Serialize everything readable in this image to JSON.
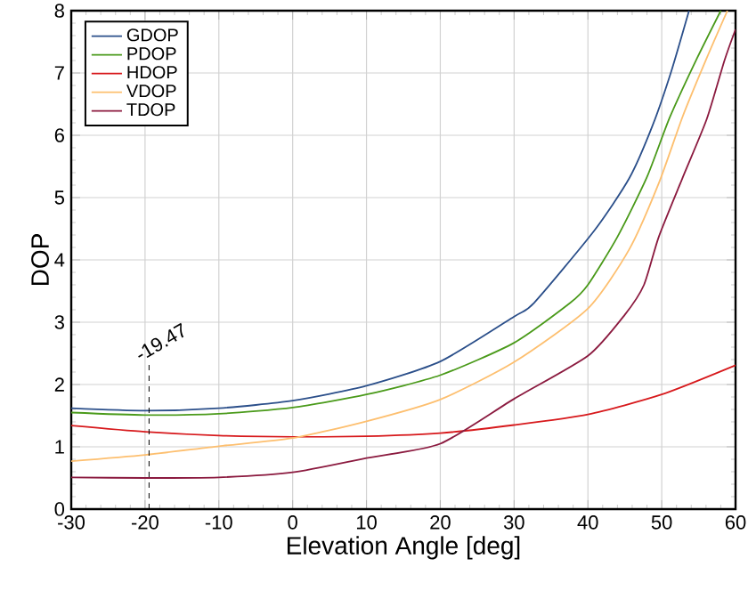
{
  "chart_data": {
    "type": "line",
    "xlabel": "Elevation Angle [deg]",
    "ylabel": "DOP",
    "xlim": [
      -30,
      60
    ],
    "ylim": [
      0,
      8
    ],
    "xticks": [
      -30,
      -20,
      -10,
      0,
      10,
      20,
      30,
      40,
      50,
      60
    ],
    "yticks": [
      0,
      1,
      2,
      3,
      4,
      5,
      6,
      7,
      8
    ],
    "grid": true,
    "legend": "top left",
    "marker": "none",
    "line_style": "solid",
    "ref_lines": [
      {
        "axis": "x",
        "value": -19.47,
        "label": "-19.47",
        "line_style": "dashed",
        "color": "#000000"
      }
    ],
    "series": [
      {
        "name": "GDOP",
        "color": "#2b4f8a",
        "x": [
          -30,
          -20,
          -10,
          0,
          10,
          20,
          30,
          32.7,
          40.8,
          45.6,
          48.8,
          51.3,
          53.7
        ],
        "values": [
          1.62,
          1.58,
          1.62,
          1.74,
          1.98,
          2.37,
          3.09,
          3.31,
          4.46,
          5.31,
          6.17,
          7.03,
          8
        ]
      },
      {
        "name": "PDOP",
        "color": "#4a9a1a",
        "x": [
          -30,
          -20,
          -10,
          0,
          10,
          20,
          30,
          37.6,
          40,
          44,
          48,
          51.1,
          54.8,
          58
        ],
        "values": [
          1.55,
          1.51,
          1.53,
          1.63,
          1.84,
          2.15,
          2.67,
          3.31,
          3.6,
          4.37,
          5.33,
          6.29,
          7.24,
          8
        ]
      },
      {
        "name": "HDOP",
        "color": "#d7191c",
        "x": [
          -30,
          -20,
          -10,
          0,
          10,
          20,
          30,
          40,
          50,
          60
        ],
        "values": [
          1.34,
          1.24,
          1.18,
          1.16,
          1.17,
          1.22,
          1.35,
          1.52,
          1.84,
          2.31
        ]
      },
      {
        "name": "VDOP",
        "color": "#fdbf6f",
        "x": [
          -30,
          -20,
          -10,
          0,
          10,
          20,
          30,
          40,
          45.6,
          49.6,
          52.8,
          56.1,
          58.9
        ],
        "values": [
          0.77,
          0.87,
          1.01,
          1.14,
          1.41,
          1.76,
          2.36,
          3.22,
          4.17,
          5.23,
          6.29,
          7.24,
          8
        ]
      },
      {
        "name": "TDOP",
        "color": "#8b1a3f",
        "x": [
          -30,
          -20,
          -10,
          0,
          10,
          20,
          30,
          40,
          45,
          47.6,
          49.6,
          52.8,
          56.1,
          58.5,
          60
        ],
        "values": [
          0.51,
          0.5,
          0.51,
          0.59,
          0.82,
          1.05,
          1.77,
          2.46,
          3.12,
          3.6,
          4.37,
          5.31,
          6.26,
          7.2,
          7.7
        ]
      }
    ]
  }
}
